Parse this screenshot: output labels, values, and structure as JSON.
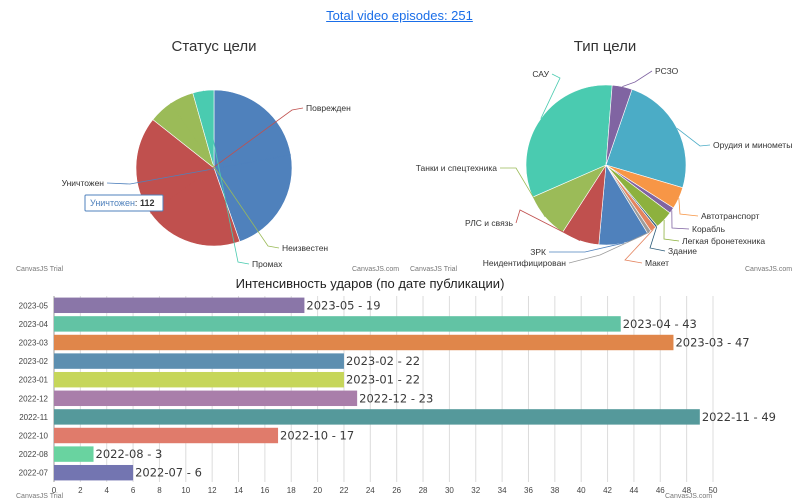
{
  "header": {
    "total_link": "Total video episodes: 251"
  },
  "watermark": "CanvasJS.com",
  "trial_text": "CanvasJS Trial",
  "tooltip": {
    "label": "Уничтожен",
    "value": 112
  },
  "chart_data": [
    {
      "type": "pie",
      "title": "Статус цели",
      "slices": [
        {
          "name": "Уничтожен",
          "value": 112,
          "color": "#4f81bc"
        },
        {
          "name": "Поврежден",
          "value": 103,
          "color": "#c0504e"
        },
        {
          "name": "Неизвестен",
          "value": 25,
          "color": "#9bbb58"
        },
        {
          "name": "Промах",
          "value": 11,
          "color": "#4acbb0"
        }
      ]
    },
    {
      "type": "pie",
      "title": "Тип цели",
      "slices": [
        {
          "name": "Орудия и минометы",
          "value": 60,
          "color": "#4bacc6"
        },
        {
          "name": "Автотранспорт",
          "value": 11,
          "color": "#f79646"
        },
        {
          "name": "Корабль",
          "value": 3,
          "color": "#8064a2"
        },
        {
          "name": "Легкая бронетехника",
          "value": 9,
          "color": "#8db13e"
        },
        {
          "name": "Здание",
          "value": 1,
          "color": "#2d5c7a"
        },
        {
          "name": "Макет",
          "value": 3,
          "color": "#e4845f"
        },
        {
          "name": "Неидентифицирован",
          "value": 2,
          "color": "#9c9c9c"
        },
        {
          "name": "ЗРК",
          "value": 25,
          "color": "#4f81bc"
        },
        {
          "name": "РЛС и связь",
          "value": 19,
          "color": "#c0504e"
        },
        {
          "name": "Танки и спецтехника",
          "value": 23,
          "color": "#9bbb58"
        },
        {
          "name": "САУ",
          "value": 81,
          "color": "#4acbb0"
        },
        {
          "name": "РСЗО",
          "value": 10,
          "color": "#8064a2"
        }
      ]
    },
    {
      "type": "bar",
      "orientation": "horizontal",
      "title": "Интенсивность ударов (по дате публикации)",
      "categories": [
        "2023-05",
        "2023-04",
        "2023-03",
        "2023-02",
        "2023-01",
        "2022-12",
        "2022-11",
        "2022-10",
        "2022-08",
        "2022-07"
      ],
      "values": [
        19,
        43,
        47,
        22,
        22,
        23,
        49,
        17,
        3,
        6
      ],
      "labels": [
        "2023-05 - 19",
        "2023-04 - 43",
        "2023-03 - 47",
        "2023-02 - 22",
        "2023-01 - 22",
        "2022-12 - 23",
        "2022-11 - 49",
        "2022-10 - 17",
        "2022-08 - 3",
        "2022-07 - 6"
      ],
      "colors": [
        "#8a76a8",
        "#62c3a4",
        "#e0864a",
        "#5d8fb0",
        "#c6d65a",
        "#a97eaa",
        "#55999b",
        "#e07b6b",
        "#69d3a0",
        "#7375b1"
      ],
      "xlim": [
        0,
        50
      ],
      "xticks": [
        0,
        2,
        4,
        6,
        8,
        10,
        12,
        14,
        16,
        18,
        20,
        22,
        24,
        26,
        28,
        30,
        32,
        34,
        36,
        38,
        40,
        42,
        44,
        46,
        48,
        50
      ],
      "grid": true
    }
  ]
}
